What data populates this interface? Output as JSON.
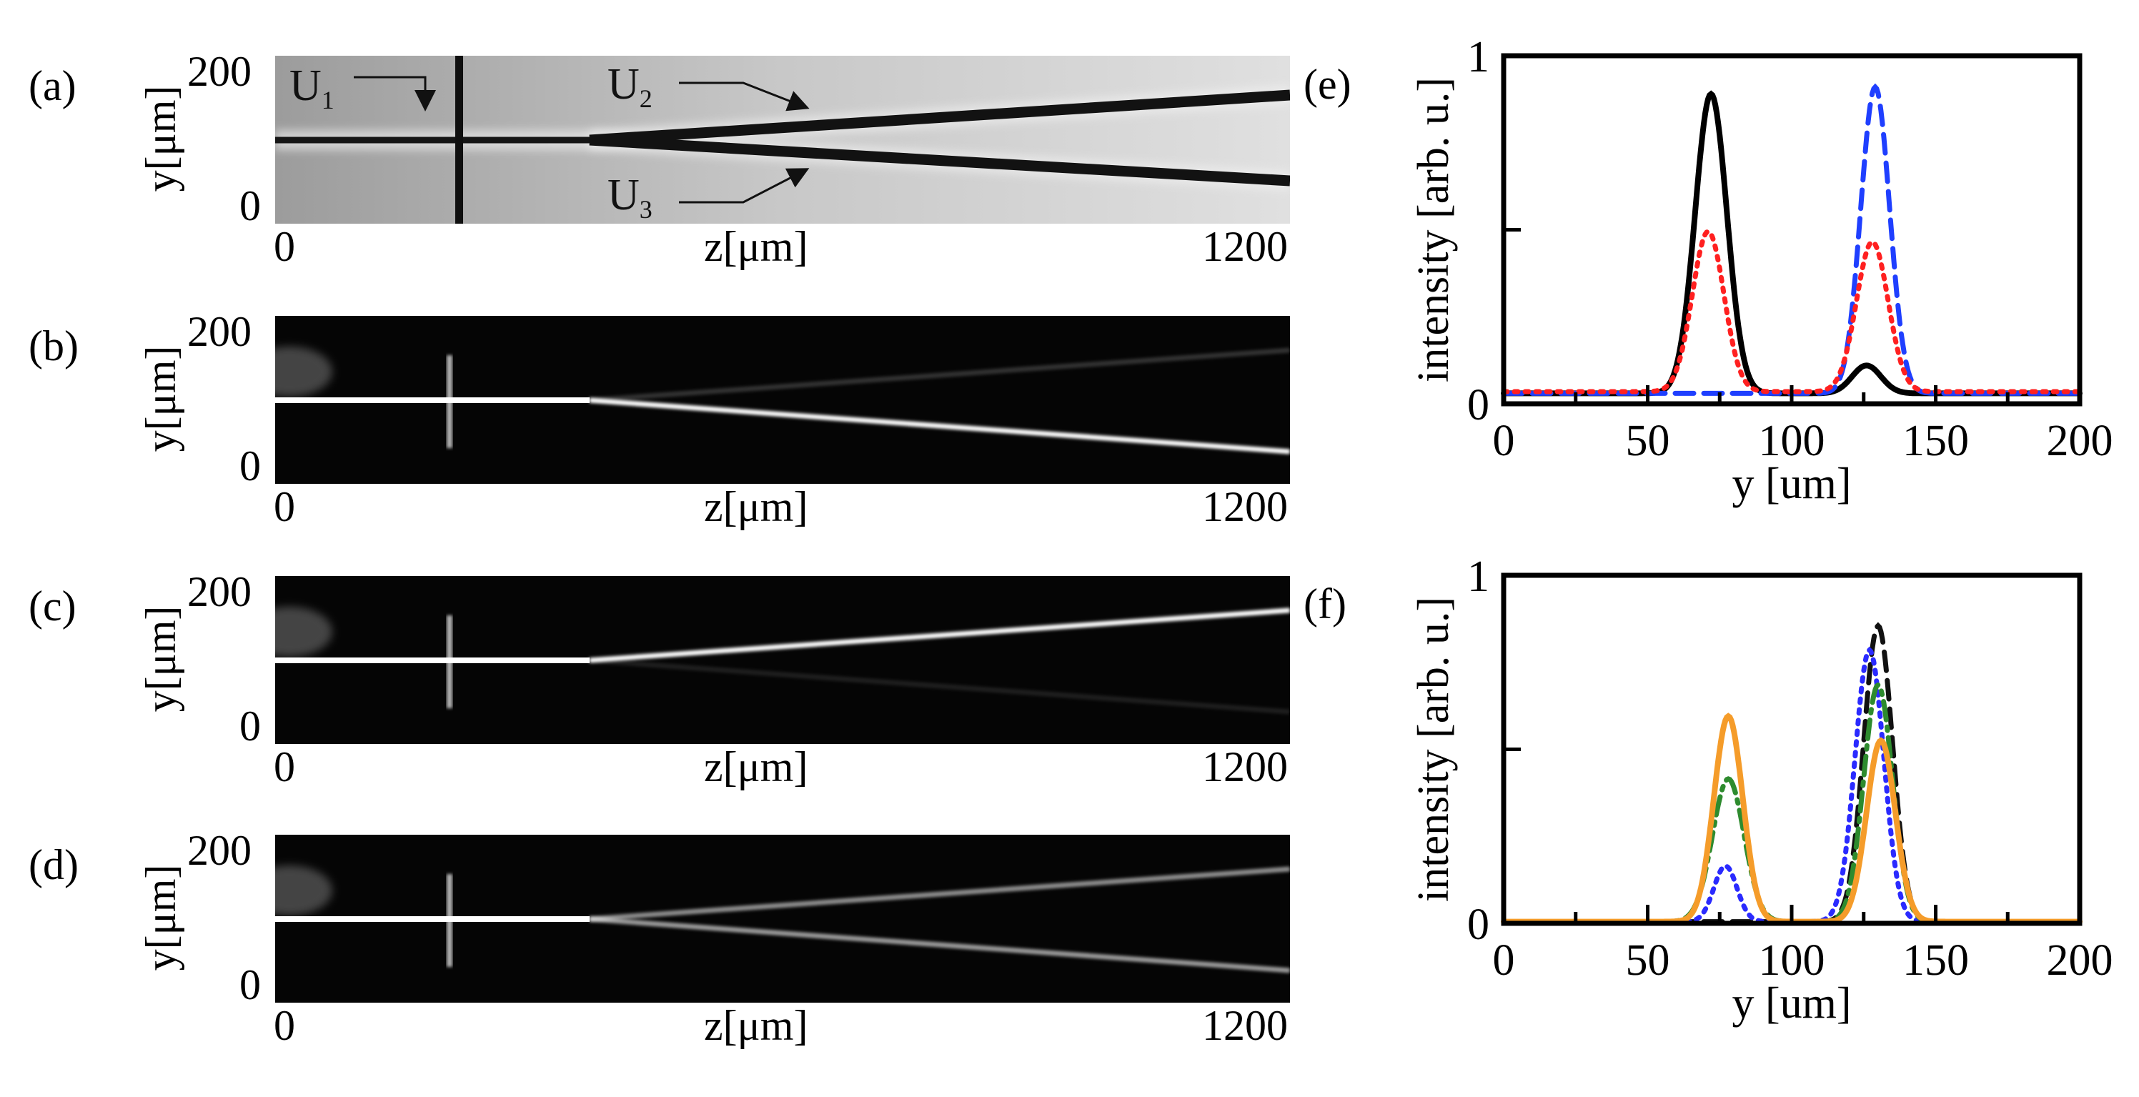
{
  "left_panels": [
    {
      "label": "(a)",
      "ylabel": "y[μm]",
      "ytick_top": "200",
      "ytick_bottom": "0",
      "xlabel": "z[μm]",
      "xtick_left": "0",
      "xtick_right": "1200",
      "type": "brightfield"
    },
    {
      "label": "(b)",
      "ylabel": "y[μm]",
      "ytick_top": "200",
      "ytick_bottom": "0",
      "xlabel": "z[μm]",
      "xtick_left": "0",
      "xtick_right": "1200",
      "type": "fluorescence-lower"
    },
    {
      "label": "(c)",
      "ylabel": "y[μm]",
      "ytick_top": "200",
      "ytick_bottom": "0",
      "xlabel": "z[μm]",
      "xtick_left": "0",
      "xtick_right": "1200",
      "type": "fluorescence-upper"
    },
    {
      "label": "(d)",
      "ylabel": "y[μm]",
      "ytick_top": "200",
      "ytick_bottom": "0",
      "xlabel": "z[μm]",
      "xtick_left": "0",
      "xtick_right": "1200",
      "type": "fluorescence-both"
    }
  ],
  "annotations": {
    "u1": "U",
    "u1_sub": "1",
    "u2": "U",
    "u2_sub": "2",
    "u3": "U",
    "u3_sub": "3"
  },
  "chart_data": [
    {
      "label": "(e)",
      "type": "line",
      "xlabel": "y [um]",
      "ylabel": "intensity [arb. u.]",
      "xlim": [
        0,
        200
      ],
      "ylim": [
        0,
        1
      ],
      "xticks": [
        "0",
        "50",
        "100",
        "150",
        "200"
      ],
      "yticks": [
        "0",
        "1"
      ],
      "series": [
        {
          "color": "#000000",
          "style": "solid",
          "peaks": [
            [
              72,
              0.86,
              5.5
            ],
            [
              126,
              0.08,
              5
            ]
          ],
          "baseline": 0.03
        },
        {
          "color": "#1f3fff",
          "style": "dashed",
          "peaks": [
            [
              129,
              0.88,
              5
            ]
          ],
          "baseline": 0.03
        },
        {
          "color": "#ff2020",
          "style": "dotted",
          "peaks": [
            [
              71,
              0.46,
              5.5
            ],
            [
              128,
              0.43,
              5.5
            ]
          ],
          "baseline": 0.035
        }
      ]
    },
    {
      "label": "(f)",
      "type": "line",
      "xlabel": "y [um]",
      "ylabel": "intensity [arb. u.]",
      "xlim": [
        0,
        200
      ],
      "ylim": [
        0,
        1
      ],
      "xticks": [
        "0",
        "50",
        "100",
        "150",
        "200"
      ],
      "yticks": [
        "0",
        "1"
      ],
      "series": [
        {
          "color": "#111111",
          "style": "dashed",
          "peaks": [
            [
              130,
              0.85,
              5
            ]
          ],
          "baseline": 0.005
        },
        {
          "color": "#2a2aff",
          "style": "dotted",
          "peaks": [
            [
              77,
              0.16,
              4
            ],
            [
              127,
              0.78,
              5
            ]
          ],
          "baseline": 0.005
        },
        {
          "color": "#2e8b2e",
          "style": "dashdot",
          "peaks": [
            [
              78,
              0.41,
              5.5
            ],
            [
              130,
              0.68,
              5
            ]
          ],
          "baseline": 0.005
        },
        {
          "color": "#f59c2a",
          "style": "solid",
          "peaks": [
            [
              78,
              0.59,
              5
            ],
            [
              131,
              0.52,
              5
            ]
          ],
          "baseline": 0.005
        }
      ]
    }
  ]
}
